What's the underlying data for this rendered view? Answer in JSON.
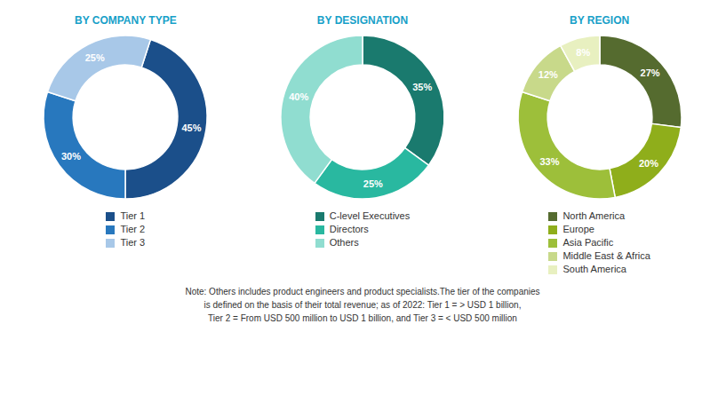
{
  "chart_data": [
    {
      "type": "donut",
      "title": "BY COMPANY TYPE",
      "categories": [
        "Tier 1",
        "Tier 2",
        "Tier 3"
      ],
      "values": [
        45,
        30,
        25
      ],
      "value_labels": [
        "45%",
        "30%",
        "25%"
      ],
      "colors": [
        "#1b4f8a",
        "#2878be",
        "#a8c8e8"
      ],
      "data_labels": true,
      "legend": "bottom"
    },
    {
      "type": "donut",
      "title": "BY DESIGNATION",
      "categories": [
        "C-level Executives",
        "Directors",
        "Others"
      ],
      "values": [
        35,
        25,
        40
      ],
      "value_labels": [
        "35%",
        "25%",
        "40%"
      ],
      "colors": [
        "#1a7a6e",
        "#29b8a0",
        "#90ddd0"
      ],
      "data_labels": true,
      "legend": "bottom"
    },
    {
      "type": "donut",
      "title": "BY REGION",
      "categories": [
        "North America",
        "Europe",
        "Asia Pacific",
        "Middle East & Africa",
        "South America"
      ],
      "values": [
        27,
        20,
        33,
        12,
        8
      ],
      "value_labels": [
        "27%",
        "20%",
        "33%",
        "12%",
        "8%"
      ],
      "colors": [
        "#556b2f",
        "#8fae1b",
        "#9dbf3a",
        "#c8d98a",
        "#e8f0c0"
      ],
      "data_labels": true,
      "legend": "bottom"
    }
  ],
  "annotations": [
    "Note: Others includes product engineers and product specialists.The tier of the companies\nis defined on the basis of their total revenue; as of 2022: Tier 1 = > USD 1 billion,\nTier 2 = From USD 500 million to USD 1 billion, and Tier 3 = < USD 500 million"
  ]
}
